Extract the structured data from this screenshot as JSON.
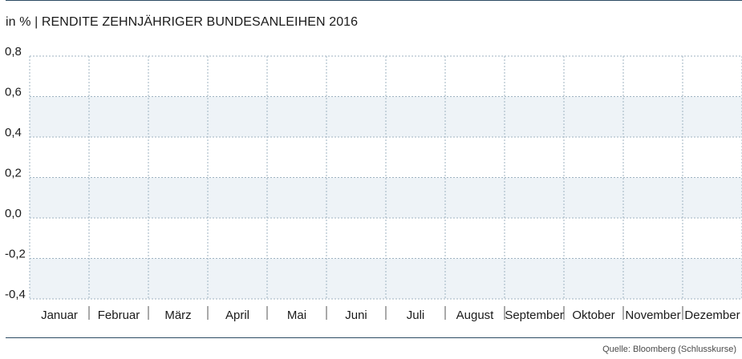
{
  "header": {
    "title": "in % | RENDITE ZEHNJÄHRIGER BUNDESANLEIHEN 2016"
  },
  "footer": {
    "source": "Quelle: Bloomberg (Schlusskurse)"
  },
  "colors": {
    "rule": "#2c4b63",
    "band": "#eef3f7",
    "grid": "#9fb3c2",
    "text": "#1a1a1a"
  },
  "chart_data": {
    "type": "line",
    "title": "in % | RENDITE ZEHNJÄHRIGER BUNDESANLEIHEN 2016",
    "xlabel": "",
    "ylabel": "",
    "categories": [
      "Januar",
      "Februar",
      "März",
      "April",
      "Mai",
      "Juni",
      "Juli",
      "August",
      "September",
      "Oktober",
      "November",
      "Dezember"
    ],
    "y_ticks": [
      0.8,
      0.6,
      0.4,
      0.2,
      0.0,
      -0.2,
      -0.4
    ],
    "y_tick_labels": [
      "0,8",
      "0,6",
      "0,4",
      "0,2",
      "0,0",
      "-0,2",
      "-0,4"
    ],
    "ylim": [
      -0.4,
      0.8
    ],
    "series": [],
    "grid": true,
    "legend": "none"
  }
}
